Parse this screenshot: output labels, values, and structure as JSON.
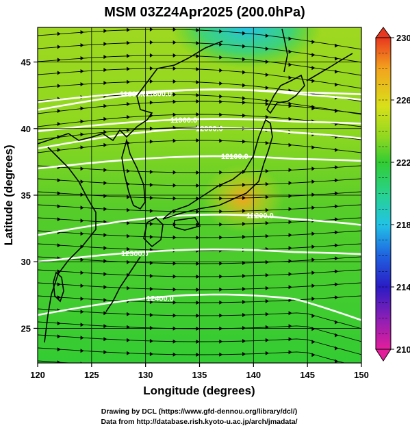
{
  "title": "MSM 03Z24Apr2025 (200.0hPa)",
  "axes": {
    "x_label": "Longitude (degrees)",
    "y_label": "Latitude  (degrees)",
    "x_ticks": [
      "120",
      "125",
      "130",
      "135",
      "140",
      "145",
      "150"
    ],
    "y_ticks": [
      "25",
      "30",
      "35",
      "40",
      "45"
    ],
    "x_range": [
      120,
      150
    ],
    "y_range": [
      22.4,
      47.6
    ]
  },
  "colorbar": {
    "ticks": [
      "230",
      "226",
      "222",
      "218",
      "214",
      "210"
    ],
    "range": [
      210,
      230
    ],
    "colors": {
      "210": "#e31e9b",
      "212": "#8a1fb5",
      "214": "#2a1cc4",
      "216": "#1f62e0",
      "218": "#22c3e6",
      "220": "#28d28c",
      "222": "#33cc33",
      "224": "#8fd820",
      "226": "#d8e01a",
      "228": "#f3a41e",
      "230": "#e8381f"
    }
  },
  "contours": [
    {
      "label": "11600.0",
      "lat": 42.0
    },
    {
      "label": "11800.0",
      "lat": 41.4
    },
    {
      "label": "11900.0",
      "lat": 39.8
    },
    {
      "label": "12000.0",
      "lat": 38.5
    },
    {
      "label": "12100.0",
      "lat": 37.0
    },
    {
      "label": "12200.0",
      "lat": 32.0
    },
    {
      "label": "12300.0",
      "lat": 30.0
    },
    {
      "label": "12400.0",
      "lat": 26.0
    }
  ],
  "footer": {
    "line1": "Drawing by DCL (https://www.gfd-dennou.org/library/dcl/)",
    "line2": "Data from http://database.rish.kyoto-u.ac.jp/arch/jmadata/"
  }
}
